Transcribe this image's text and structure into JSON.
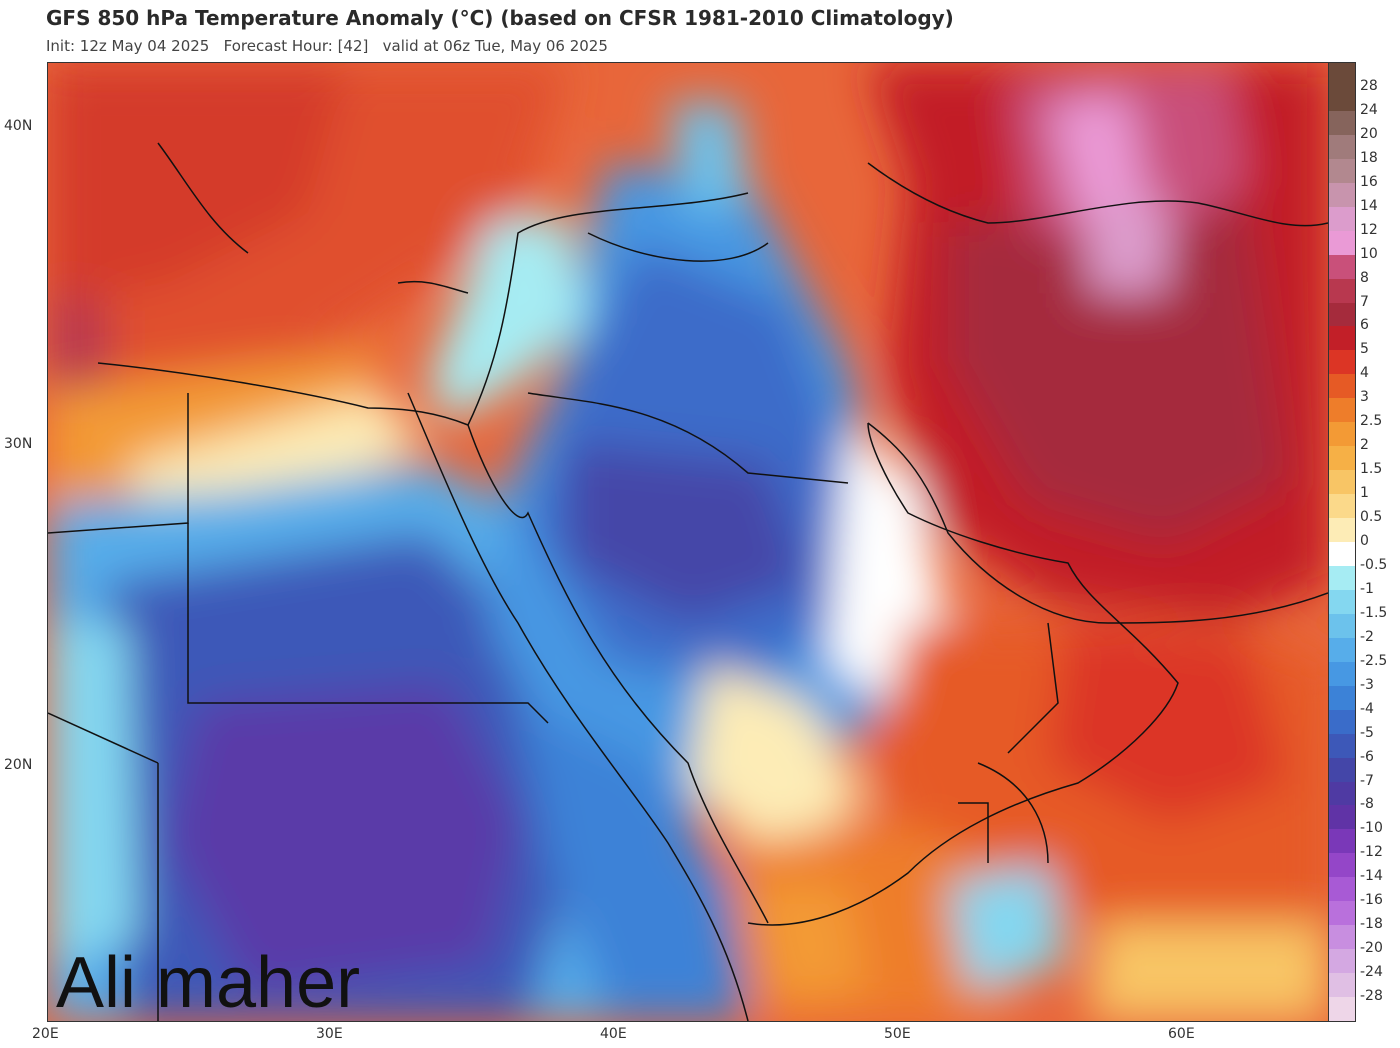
{
  "header": {
    "title": "GFS 850 hPa Temperature Anomaly (°C) (based on CFSR 1981-2010 Climatology)",
    "subtitle": "Init: 12z May 04 2025   Forecast Hour: [42]   valid at 06z Tue, May 06 2025"
  },
  "axes": {
    "lat_labels": [
      "40N",
      "30N",
      "20N"
    ],
    "lon_labels": [
      "20E",
      "30E",
      "40E",
      "50E",
      "60E"
    ]
  },
  "colorbar": {
    "labels": [
      "28",
      "24",
      "20",
      "18",
      "16",
      "14",
      "12",
      "10",
      "8",
      "7",
      "6",
      "5",
      "4",
      "3",
      "2.5",
      "2",
      "1.5",
      "1",
      "0.5",
      "0",
      "-0.5",
      "-1",
      "-1.5",
      "-2",
      "-2.5",
      "-3",
      "-4",
      "-5",
      "-6",
      "-7",
      "-8",
      "-10",
      "-12",
      "-14",
      "-16",
      "-18",
      "-20",
      "-24",
      "-28"
    ],
    "colors": [
      "#6b4a3a",
      "#86645c",
      "#a07b7b",
      "#b2888f",
      "#c894ad",
      "#dc9ccc",
      "#ea9ad6",
      "#c9507a",
      "#b8384f",
      "#a52b3c",
      "#c21f28",
      "#dc3525",
      "#e65a25",
      "#ee7d2a",
      "#f39a35",
      "#f6b046",
      "#f8c565",
      "#fbd98a",
      "#fdecb6",
      "#ffffff",
      "#a6ecf3",
      "#84d7f0",
      "#6cc2ec",
      "#57adea",
      "#4798e3",
      "#3c82d7",
      "#3a6cc9",
      "#3d58b8",
      "#4446a8",
      "#4f3aa3",
      "#6033a6",
      "#7a38b8",
      "#9446c8",
      "#a85ad5",
      "#b970dc",
      "#c88ee0",
      "#d4a8e2",
      "#e0bfe4",
      "#eed6e8"
    ]
  },
  "watermark": "Ali maher"
}
